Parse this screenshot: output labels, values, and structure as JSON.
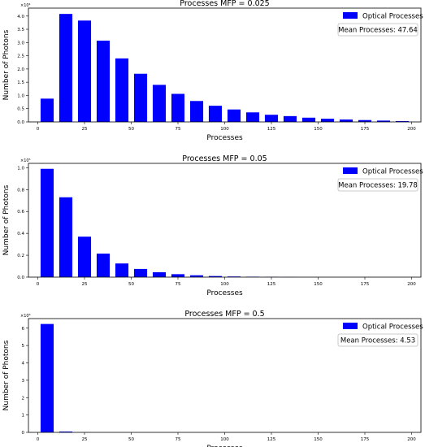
{
  "chart_data": [
    {
      "type": "bar",
      "title": "Processes MFP = 0.025",
      "xlabel": "Processes",
      "ylabel": "Number of Photons",
      "offset_text": "×10⁴",
      "xlim": [
        -5,
        205
      ],
      "ylim": [
        0,
        4.3
      ],
      "xticks": [
        0,
        25,
        50,
        75,
        100,
        125,
        150,
        175,
        200
      ],
      "yticks": [
        0.0,
        0.5,
        1.0,
        1.5,
        2.0,
        2.5,
        3.0,
        3.5,
        4.0
      ],
      "ytick_decimals": 1,
      "bar_width": 7,
      "x": [
        5,
        15,
        25,
        35,
        45,
        55,
        65,
        75,
        85,
        95,
        105,
        115,
        125,
        135,
        145,
        155,
        165,
        175,
        185,
        195
      ],
      "values": [
        0.88,
        4.08,
        3.83,
        3.07,
        2.4,
        1.82,
        1.4,
        1.06,
        0.79,
        0.61,
        0.47,
        0.36,
        0.27,
        0.22,
        0.16,
        0.12,
        0.09,
        0.07,
        0.05,
        0.03
      ],
      "legend": {
        "label": "Optical Processes",
        "position": "top-right"
      },
      "annotation": "Mean Processes: 47.64",
      "color": "#0000ff"
    },
    {
      "type": "bar",
      "title": "Processes MFP = 0.05",
      "xlabel": "Processes",
      "ylabel": "Number of Photons",
      "offset_text": "×10⁵",
      "xlim": [
        -5,
        205
      ],
      "ylim": [
        0,
        1.04
      ],
      "xticks": [
        0,
        25,
        50,
        75,
        100,
        125,
        150,
        175,
        200
      ],
      "yticks": [
        0.0,
        0.2,
        0.4,
        0.6,
        0.8,
        1.0
      ],
      "ytick_decimals": 1,
      "bar_width": 7,
      "x": [
        5,
        15,
        25,
        35,
        45,
        55,
        65,
        75,
        85,
        95,
        105,
        115,
        125,
        135
      ],
      "values": [
        0.99,
        0.73,
        0.37,
        0.215,
        0.125,
        0.075,
        0.045,
        0.027,
        0.017,
        0.01,
        0.006,
        0.004,
        0.002,
        0.001
      ],
      "legend": {
        "label": "Optical Processes",
        "position": "top-right"
      },
      "annotation": "Mean Processes: 19.78",
      "color": "#0000ff"
    },
    {
      "type": "bar",
      "title": "Processes MFP = 0.5",
      "xlabel": "Processes",
      "ylabel": "Number of Photons",
      "offset_text": "×10⁶",
      "xlim": [
        -5,
        205
      ],
      "ylim": [
        0,
        6.55
      ],
      "xticks": [
        0,
        25,
        50,
        75,
        100,
        125,
        150,
        175,
        200
      ],
      "yticks": [
        0,
        1,
        2,
        3,
        4,
        5,
        6
      ],
      "ytick_decimals": 0,
      "bar_width": 7,
      "x": [
        5,
        15,
        25
      ],
      "values": [
        6.24,
        0.05,
        0.005
      ],
      "legend": {
        "label": "Optical Processes",
        "position": "top-right"
      },
      "annotation": "Mean Processes: 4.53",
      "color": "#0000ff"
    }
  ]
}
